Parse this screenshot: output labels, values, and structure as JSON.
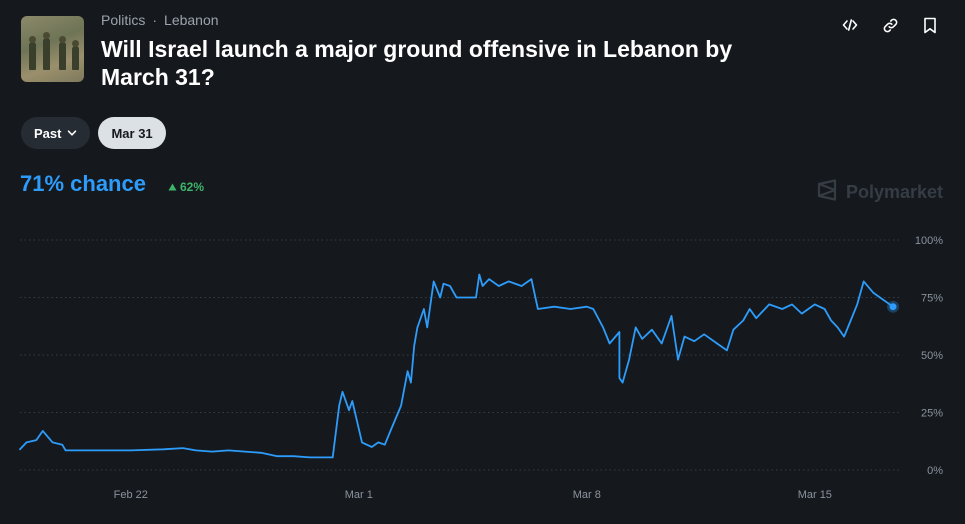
{
  "market": {
    "category": "Politics",
    "separator": "·",
    "subcategory": "Lebanon",
    "title": "Will Israel launch a major ground offensive in Lebanon by March 31?",
    "chance_text": "71% chance",
    "delta_text": "62%",
    "brand": "Polymarket"
  },
  "controls": {
    "past_label": "Past",
    "date_label": "Mar 31"
  },
  "icons": {
    "embed": "embed-code-icon",
    "link": "link-icon",
    "bookmark": "bookmark-icon",
    "chevron": "chevron-down-icon",
    "delta": "triangle-up-icon",
    "logo": "polymarket-logo-icon"
  },
  "colors": {
    "accent": "#2d9cfa",
    "positive": "#3db468",
    "background": "#15191e"
  },
  "chart_data": {
    "type": "line",
    "title": "",
    "xlabel": "",
    "ylabel": "",
    "x_ticks": [
      {
        "label": "Feb 22",
        "day": 22
      },
      {
        "label": "Mar 1",
        "day": 29
      },
      {
        "label": "Mar 8",
        "day": 36
      },
      {
        "label": "Mar 15",
        "day": 43
      }
    ],
    "y_ticks": [
      {
        "label": "100%",
        "value": 100
      },
      {
        "label": "75%",
        "value": 75
      },
      {
        "label": "50%",
        "value": 50
      },
      {
        "label": "25%",
        "value": 25
      },
      {
        "label": "0%",
        "value": 0
      }
    ],
    "xlim": [
      18.6,
      45.4
    ],
    "ylim": [
      0,
      100
    ],
    "grid": true,
    "series": [
      {
        "values": [
          [
            18.6,
            9
          ],
          [
            18.8,
            12
          ],
          [
            19.1,
            13
          ],
          [
            19.3,
            17
          ],
          [
            19.6,
            12
          ],
          [
            19.9,
            11
          ],
          [
            20,
            8.5
          ],
          [
            21,
            8.5
          ],
          [
            22,
            8.5
          ],
          [
            23,
            9
          ],
          [
            23.6,
            9.5
          ],
          [
            24,
            8.5
          ],
          [
            24.5,
            8
          ],
          [
            25,
            8.5
          ],
          [
            26,
            7.5
          ],
          [
            26.5,
            6
          ],
          [
            27,
            6
          ],
          [
            27.5,
            5.5
          ],
          [
            28.2,
            5.5
          ],
          [
            28.4,
            28
          ],
          [
            28.5,
            34
          ],
          [
            28.7,
            26
          ],
          [
            28.8,
            30
          ],
          [
            29.1,
            12
          ],
          [
            29.4,
            10
          ],
          [
            29.6,
            12
          ],
          [
            29.8,
            11
          ],
          [
            30,
            18
          ],
          [
            30.3,
            28
          ],
          [
            30.5,
            43
          ],
          [
            30.6,
            38
          ],
          [
            30.7,
            54
          ],
          [
            30.8,
            62
          ],
          [
            31,
            70
          ],
          [
            31.1,
            62
          ],
          [
            31.3,
            82
          ],
          [
            31.5,
            75
          ],
          [
            31.6,
            81
          ],
          [
            31.8,
            80
          ],
          [
            32,
            75
          ],
          [
            32.6,
            75
          ],
          [
            32.7,
            85
          ],
          [
            32.8,
            80
          ],
          [
            33,
            83
          ],
          [
            33.3,
            80
          ],
          [
            33.6,
            82
          ],
          [
            34,
            80
          ],
          [
            34.3,
            83
          ],
          [
            34.5,
            70
          ],
          [
            35,
            71
          ],
          [
            35.5,
            70
          ],
          [
            36,
            71
          ],
          [
            36.2,
            70
          ],
          [
            36.5,
            62
          ],
          [
            36.7,
            55
          ],
          [
            37,
            60
          ],
          [
            37,
            40
          ],
          [
            37.1,
            38
          ],
          [
            37.3,
            48
          ],
          [
            37.5,
            62
          ],
          [
            37.7,
            57
          ],
          [
            38,
            61
          ],
          [
            38.3,
            55
          ],
          [
            38.6,
            67
          ],
          [
            38.8,
            48
          ],
          [
            39,
            58
          ],
          [
            39.3,
            56
          ],
          [
            39.6,
            59
          ],
          [
            40,
            55
          ],
          [
            40.3,
            52
          ],
          [
            40.5,
            61
          ],
          [
            40.8,
            65
          ],
          [
            41,
            70
          ],
          [
            41.2,
            66
          ],
          [
            41.6,
            72
          ],
          [
            42,
            70
          ],
          [
            42.3,
            72
          ],
          [
            42.6,
            68
          ],
          [
            43,
            72
          ],
          [
            43.3,
            70
          ],
          [
            43.5,
            65
          ],
          [
            43.7,
            62
          ],
          [
            43.9,
            58
          ],
          [
            44.1,
            65
          ],
          [
            44.3,
            72
          ],
          [
            44.5,
            82
          ],
          [
            44.8,
            77
          ],
          [
            45,
            75
          ],
          [
            45.4,
            71
          ]
        ]
      }
    ]
  }
}
